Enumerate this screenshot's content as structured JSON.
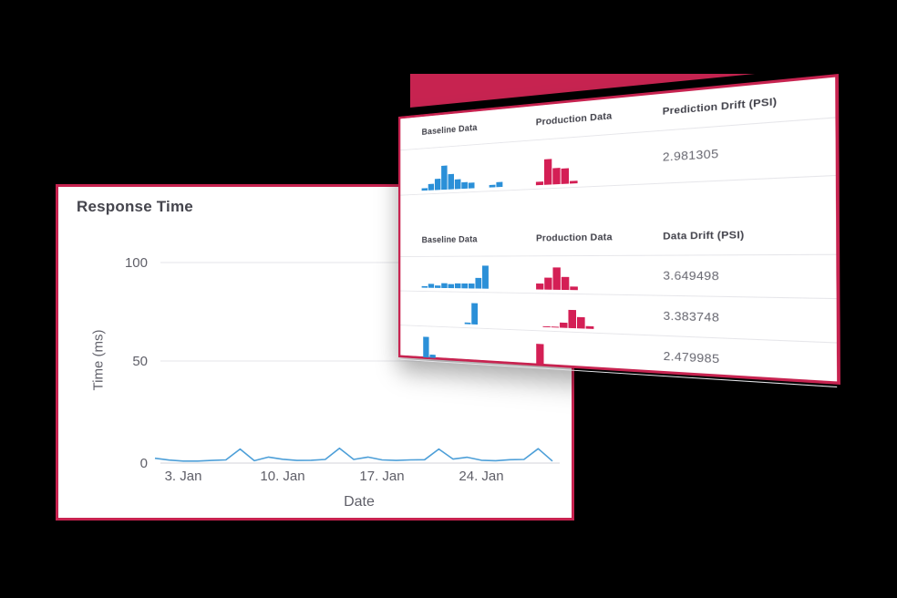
{
  "colors": {
    "background": "#000000",
    "crimson": "#c72350",
    "card_background": "#ffffff",
    "baseline_bar_blue": "#2b90d8",
    "production_bar_red": "#d41f55",
    "line_blue": "#4d9fd8",
    "grid_line": "#e6e6ea",
    "heading_text": "#45454d",
    "axis_text": "#5f5f68",
    "value_text": "#66666f"
  },
  "chart_data": [
    {
      "type": "line",
      "title": "Response Time",
      "xlabel": "Date",
      "ylabel": "Time (ms)",
      "ylim": [
        0,
        100
      ],
      "yticks": [
        0,
        50,
        100
      ],
      "xticks": [
        "3. Jan",
        "10. Jan",
        "17. Jan",
        "24. Jan"
      ],
      "grid": "horizontal-only",
      "legend": false,
      "x": [
        "1. Jan",
        "2. Jan",
        "3. Jan",
        "4. Jan",
        "5. Jan",
        "6. Jan",
        "7. Jan",
        "8. Jan",
        "9. Jan",
        "10. Jan",
        "11. Jan",
        "12. Jan",
        "13. Jan",
        "14. Jan",
        "15. Jan",
        "16. Jan",
        "17. Jan",
        "18. Jan",
        "19. Jan",
        "20. Jan",
        "21. Jan",
        "22. Jan",
        "23. Jan",
        "24. Jan",
        "25. Jan",
        "26. Jan",
        "27. Jan",
        "28. Jan",
        "29. Jan"
      ],
      "values": [
        2.4,
        1.5,
        1,
        1,
        1.3,
        1.6,
        7,
        1.2,
        3,
        1.9,
        1.3,
        1.4,
        1.8,
        7.4,
        1.8,
        3,
        1.6,
        1.3,
        1.6,
        1.7,
        7,
        2,
        2.9,
        1.4,
        1.2,
        1.7,
        1.8,
        7.2,
        1
      ]
    },
    {
      "type": "table",
      "description": "Drift monitoring table: baseline vs production distribution histograms with PSI values",
      "sections": [
        {
          "headers": [
            "Baseline Data",
            "Production Data",
            "Prediction Drift (PSI)"
          ],
          "rows": [
            {
              "baseline_hist": [
                3,
                8,
                14,
                30,
                19,
                12,
                8,
                7,
                0,
                0,
                3,
                6
              ],
              "baseline_offset": 0,
              "production_hist": [
                4,
                30,
                19,
                18,
                3
              ],
              "production_offset": 0,
              "value": "2.981305"
            }
          ]
        },
        {
          "headers": [
            "Baseline Data",
            "Production Data",
            "Data Drift (PSI)"
          ],
          "rows": [
            {
              "baseline_hist": [
                2,
                5,
                3,
                6,
                5,
                6,
                6,
                6,
                13,
                28
              ],
              "baseline_offset": 0,
              "production_hist": [
                7,
                14,
                26,
                15,
                4
              ],
              "production_offset": 0,
              "value": "3.649498"
            },
            {
              "baseline_hist": [
                2,
                26
              ],
              "baseline_offset": 58,
              "production_hist": [
                1,
                1,
                6,
                21,
                13,
                3
              ],
              "production_offset": 8,
              "value": "3.383748"
            },
            {
              "baseline_hist": [
                26,
                4
              ],
              "baseline_offset": 2,
              "production_hist": [
                24
              ],
              "production_offset": 0,
              "value": "2.479985"
            }
          ]
        }
      ]
    }
  ]
}
